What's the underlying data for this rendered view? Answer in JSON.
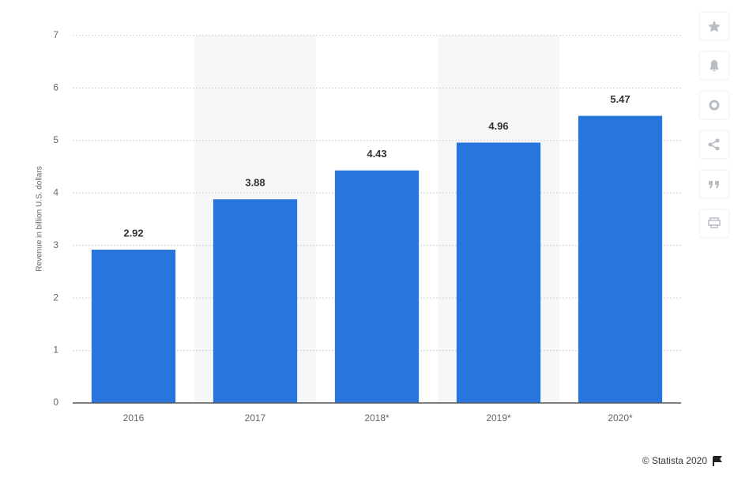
{
  "chart_data": {
    "type": "bar",
    "y_label": "Revenue in billion U.S. dollars",
    "categories": [
      "2016",
      "2017",
      "2018*",
      "2019*",
      "2020*"
    ],
    "values": [
      2.92,
      3.88,
      4.43,
      4.96,
      5.47
    ],
    "color": "#2876dd",
    "ylim": [
      0,
      7
    ],
    "yticks": [
      0,
      1,
      2,
      3,
      4,
      5,
      6,
      7
    ],
    "grid": true,
    "source": "© Statista 2020"
  }
}
